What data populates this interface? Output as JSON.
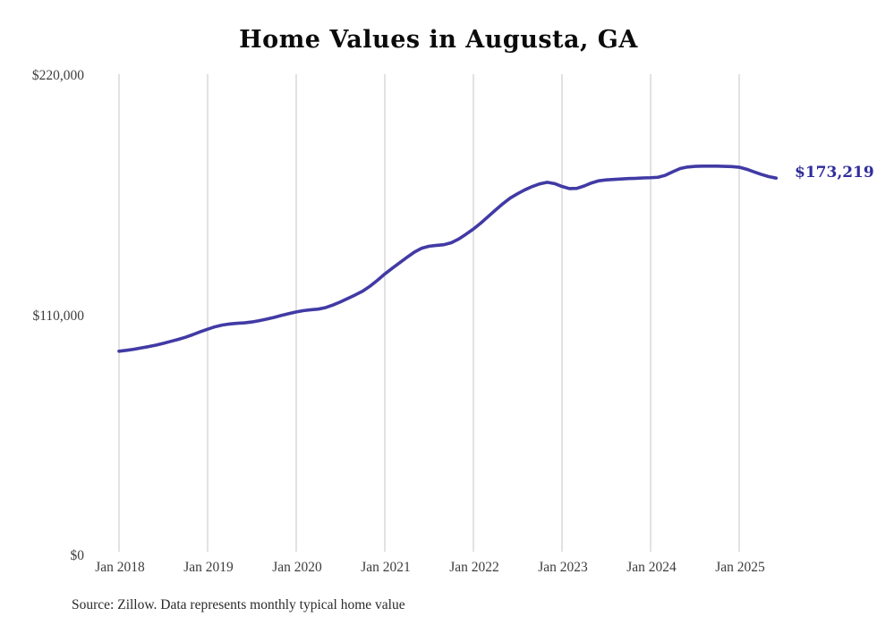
{
  "chart_data": {
    "type": "line",
    "title": "Home Values in Augusta, GA",
    "source_note": "Source: Zillow. Data represents monthly typical home value",
    "series_name": "Monthly typical home value",
    "annotation": {
      "label": "$173,219",
      "value": 173219
    },
    "xlabel": "",
    "ylabel": "",
    "ylim": [
      0,
      220000
    ],
    "grid": "vertical-only",
    "legend": "none",
    "y_ticks": [
      {
        "label": "$0",
        "value": 0
      },
      {
        "label": "$110,000",
        "value": 110000
      },
      {
        "label": "$220,000",
        "value": 220000
      }
    ],
    "x_ticks": [
      {
        "label": "Jan 2018",
        "month_index": 0
      },
      {
        "label": "Jan 2019",
        "month_index": 12
      },
      {
        "label": "Jan 2020",
        "month_index": 24
      },
      {
        "label": "Jan 2021",
        "month_index": 36
      },
      {
        "label": "Jan 2022",
        "month_index": 48
      },
      {
        "label": "Jan 2023",
        "month_index": 60
      },
      {
        "label": "Jan 2024",
        "month_index": 72
      },
      {
        "label": "Jan 2025",
        "month_index": 84
      }
    ],
    "x": [
      "2018-01",
      "2018-02",
      "2018-03",
      "2018-04",
      "2018-05",
      "2018-06",
      "2018-07",
      "2018-08",
      "2018-09",
      "2018-10",
      "2018-11",
      "2018-12",
      "2019-01",
      "2019-02",
      "2019-03",
      "2019-04",
      "2019-05",
      "2019-06",
      "2019-07",
      "2019-08",
      "2019-09",
      "2019-10",
      "2019-11",
      "2019-12",
      "2020-01",
      "2020-02",
      "2020-03",
      "2020-04",
      "2020-05",
      "2020-06",
      "2020-07",
      "2020-08",
      "2020-09",
      "2020-10",
      "2020-11",
      "2020-12",
      "2021-01",
      "2021-02",
      "2021-03",
      "2021-04",
      "2021-05",
      "2021-06",
      "2021-07",
      "2021-08",
      "2021-09",
      "2021-10",
      "2021-11",
      "2021-12",
      "2022-01",
      "2022-02",
      "2022-03",
      "2022-04",
      "2022-05",
      "2022-06",
      "2022-07",
      "2022-08",
      "2022-09",
      "2022-10",
      "2022-11",
      "2022-12",
      "2023-01",
      "2023-02",
      "2023-03",
      "2023-04",
      "2023-05",
      "2023-06",
      "2023-07",
      "2023-08",
      "2023-09",
      "2023-10",
      "2023-11",
      "2023-12",
      "2024-01",
      "2024-02",
      "2024-03",
      "2024-04",
      "2024-05",
      "2024-06",
      "2024-07",
      "2024-08",
      "2024-09",
      "2024-10",
      "2024-11",
      "2024-12",
      "2025-01",
      "2025-02",
      "2025-03",
      "2025-04",
      "2025-05",
      "2025-06"
    ],
    "values": [
      93900,
      94300,
      94800,
      95400,
      96000,
      96700,
      97500,
      98400,
      99300,
      100300,
      101500,
      102800,
      104000,
      105100,
      105900,
      106400,
      106700,
      106900,
      107300,
      107900,
      108600,
      109400,
      110300,
      111100,
      111900,
      112500,
      112900,
      113200,
      113900,
      115100,
      116500,
      118100,
      119700,
      121400,
      123700,
      126400,
      129300,
      131900,
      134400,
      136900,
      139300,
      141100,
      142000,
      142400,
      142700,
      143600,
      145300,
      147500,
      149900,
      152600,
      155600,
      158600,
      161500,
      164100,
      166100,
      167900,
      169400,
      170600,
      171300,
      170700,
      169400,
      168400,
      168500,
      169600,
      171000,
      172000,
      172400,
      172600,
      172800,
      173000,
      173100,
      173300,
      173400,
      173600,
      174500,
      176100,
      177600,
      178300,
      178600,
      178700,
      178700,
      178700,
      178600,
      178500,
      178200,
      177300,
      176100,
      174900,
      173900,
      173219
    ],
    "colors": {
      "line": "#413aa5",
      "annotation_text": "#2f2d9c",
      "gridline": "#c6c6c6",
      "axis_text": "#3d3d3d",
      "title_text": "#0b0b0b",
      "background": "#ffffff"
    }
  }
}
